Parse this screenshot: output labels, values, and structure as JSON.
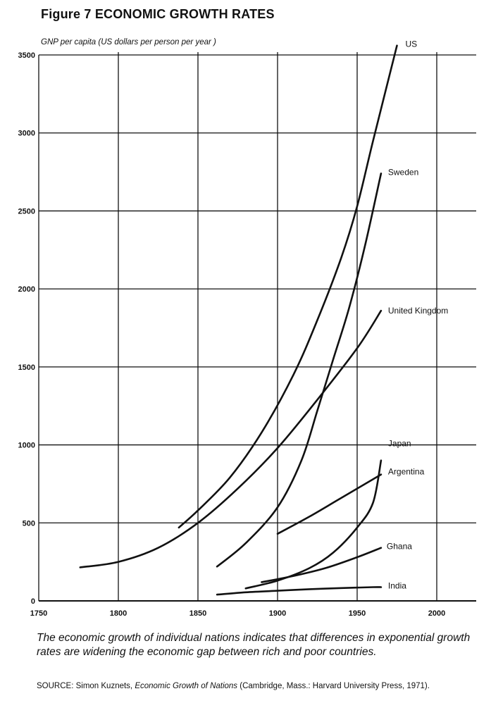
{
  "title": "Figure 7 ECONOMIC GROWTH RATES",
  "chart_data": {
    "type": "line",
    "title": "Figure 7 ECONOMIC GROWTH RATES",
    "ylabel": "GNP per capita (US dollars per person per year )",
    "xlabel": "",
    "xlim": [
      1750,
      2000
    ],
    "ylim": [
      0,
      3500
    ],
    "xticks": [
      "1750",
      "1800",
      "1850",
      "1900",
      "1950",
      "2000"
    ],
    "yticks": [
      "0",
      "500",
      "1000",
      "1500",
      "2000",
      "2500",
      "3000",
      "3500"
    ],
    "grid": true,
    "legend": "direct labels at line ends",
    "series": [
      {
        "name": "US",
        "x": [
          1838,
          1850,
          1870,
          1890,
          1910,
          1925,
          1940,
          1950,
          1960,
          1975
        ],
        "y": [
          470,
          580,
          790,
          1080,
          1450,
          1800,
          2200,
          2530,
          2950,
          3560
        ]
      },
      {
        "name": "Sweden",
        "x": [
          1862,
          1880,
          1900,
          1915,
          1925,
          1935,
          1945,
          1955,
          1965
        ],
        "y": [
          220,
          370,
          600,
          900,
          1220,
          1550,
          1880,
          2280,
          2740
        ]
      },
      {
        "name": "United Kingdom",
        "x": [
          1776,
          1800,
          1825,
          1850,
          1875,
          1900,
          1925,
          1950,
          1965
        ],
        "y": [
          215,
          250,
          340,
          500,
          720,
          980,
          1290,
          1620,
          1860
        ]
      },
      {
        "name": "Japan",
        "x": [
          1880,
          1900,
          1920,
          1935,
          1950,
          1960,
          1965
        ],
        "y": [
          80,
          130,
          210,
          310,
          470,
          630,
          900
        ]
      },
      {
        "name": "Argentina",
        "x": [
          1900,
          1920,
          1940,
          1965
        ],
        "y": [
          430,
          540,
          660,
          810
        ]
      },
      {
        "name": "Ghana",
        "x": [
          1890,
          1910,
          1930,
          1950,
          1965
        ],
        "y": [
          120,
          160,
          210,
          280,
          340
        ]
      },
      {
        "name": "India",
        "x": [
          1862,
          1880,
          1900,
          1920,
          1940,
          1960,
          1965
        ],
        "y": [
          40,
          55,
          65,
          75,
          82,
          88,
          88
        ]
      }
    ]
  },
  "caption": "The economic growth of individual nations indicates that differences in exponential growth rates are widening the economic gap between rich and poor countries.",
  "source": {
    "prefix": "SOURCE: Simon Kuznets, ",
    "work": "Economic Growth of Nations",
    "suffix": " (Cambridge, Mass.: Harvard University Press, 1971)."
  },
  "colors": {
    "ink": "#111111",
    "grid": "#111111",
    "background": "#ffffff"
  }
}
